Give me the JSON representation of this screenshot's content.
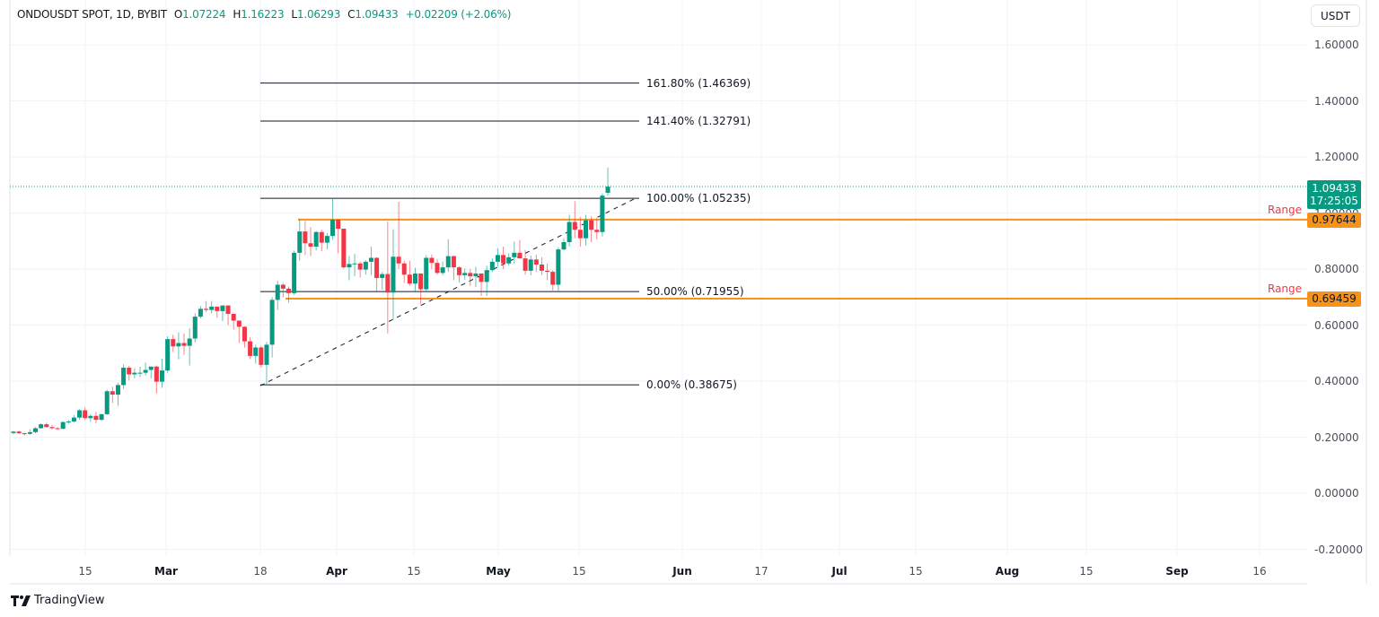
{
  "legend": {
    "symbol": "ONDOUSDT SPOT, 1D, BYBIT",
    "open_label": "O",
    "open": "1.07224",
    "high_label": "H",
    "high": "1.16223",
    "low_label": "L",
    "low": "1.06293",
    "close_label": "C",
    "close": "1.09433",
    "change": "+0.02209 (+2.06%)"
  },
  "currency_button": "USDT",
  "price_axis": {
    "ticks": [
      "1.60000",
      "1.40000",
      "1.20000",
      "1.00000",
      "0.80000",
      "0.60000",
      "0.40000",
      "0.20000",
      "0.00000",
      "-0.20000"
    ]
  },
  "time_axis": {
    "ticks": [
      {
        "label": "15",
        "month": false
      },
      {
        "label": "Mar",
        "month": true
      },
      {
        "label": "18",
        "month": false
      },
      {
        "label": "Apr",
        "month": true
      },
      {
        "label": "15",
        "month": false
      },
      {
        "label": "May",
        "month": true
      },
      {
        "label": "15",
        "month": false
      },
      {
        "label": "Jun",
        "month": true
      },
      {
        "label": "17",
        "month": false
      },
      {
        "label": "Jul",
        "month": true
      },
      {
        "label": "15",
        "month": false
      },
      {
        "label": "Aug",
        "month": true
      },
      {
        "label": "15",
        "month": false
      },
      {
        "label": "Sep",
        "month": true
      },
      {
        "label": "16",
        "month": false
      }
    ]
  },
  "last_price_tag": {
    "price": "1.09433",
    "countdown": "17:25:05"
  },
  "range_lines": [
    {
      "label": "Range",
      "price": "0.97644"
    },
    {
      "label": "Range",
      "price": "0.69459"
    }
  ],
  "fib_levels": [
    {
      "label": "161.80% (1.46369)"
    },
    {
      "label": "141.40% (1.32791)"
    },
    {
      "label": "100.00% (1.05235)"
    },
    {
      "label": "50.00% (0.71955)"
    },
    {
      "label": "0.00% (0.38675)"
    }
  ],
  "branding": {
    "logo_text": "TradingView"
  },
  "colors": {
    "up": "#089981",
    "down": "#f23645",
    "range": "#f7931a",
    "fib": "#131722",
    "last": "#089981"
  },
  "chart_data": {
    "type": "candlestick",
    "title": "ONDOUSDT SPOT, 1D, BYBIT",
    "xlabel": "",
    "ylabel": "USDT",
    "ylim": [
      -0.24,
      1.67
    ],
    "grid": true,
    "x_tick_labels": [
      "15",
      "Mar",
      "18",
      "Apr",
      "15",
      "May",
      "15",
      "Jun",
      "17",
      "Jul",
      "15",
      "Aug",
      "15",
      "Sep",
      "16"
    ],
    "y_tick_labels": [
      "1.60000",
      "1.40000",
      "1.20000",
      "1.00000",
      "0.80000",
      "0.60000",
      "0.40000",
      "0.20000",
      "0.00000",
      "-0.20000"
    ],
    "last": {
      "open": 1.07224,
      "high": 1.16223,
      "low": 1.06293,
      "close": 1.09433,
      "change": 0.02209,
      "change_pct": 2.06
    },
    "horizontal_lines": [
      {
        "name": "Range",
        "value": 0.97644,
        "color": "#f7931a"
      },
      {
        "name": "Range",
        "value": 0.69459,
        "color": "#f7931a"
      }
    ],
    "fibonacci": {
      "anchor_low": 0.38675,
      "anchor_high": 1.05235,
      "levels": [
        {
          "ratio": 0.0,
          "value": 0.38675
        },
        {
          "ratio": 0.5,
          "value": 0.71955
        },
        {
          "ratio": 1.0,
          "value": 1.05235
        },
        {
          "ratio": 1.414,
          "value": 1.32791
        },
        {
          "ratio": 1.618,
          "value": 1.46369
        }
      ]
    },
    "candles": [
      [
        0.215,
        0.222,
        0.21,
        0.22
      ],
      [
        0.22,
        0.224,
        0.212,
        0.214
      ],
      [
        0.214,
        0.216,
        0.206,
        0.212
      ],
      [
        0.212,
        0.228,
        0.208,
        0.218
      ],
      [
        0.218,
        0.236,
        0.214,
        0.232
      ],
      [
        0.232,
        0.25,
        0.23,
        0.246
      ],
      [
        0.246,
        0.252,
        0.234,
        0.236
      ],
      [
        0.236,
        0.244,
        0.228,
        0.232
      ],
      [
        0.232,
        0.236,
        0.226,
        0.23
      ],
      [
        0.23,
        0.256,
        0.228,
        0.254
      ],
      [
        0.254,
        0.262,
        0.248,
        0.256
      ],
      [
        0.256,
        0.278,
        0.252,
        0.27
      ],
      [
        0.27,
        0.3,
        0.262,
        0.296
      ],
      [
        0.296,
        0.306,
        0.262,
        0.268
      ],
      [
        0.268,
        0.282,
        0.254,
        0.276
      ],
      [
        0.276,
        0.29,
        0.25,
        0.262
      ],
      [
        0.262,
        0.284,
        0.258,
        0.282
      ],
      [
        0.282,
        0.37,
        0.28,
        0.364
      ],
      [
        0.364,
        0.38,
        0.322,
        0.352
      ],
      [
        0.352,
        0.394,
        0.312,
        0.386
      ],
      [
        0.386,
        0.46,
        0.372,
        0.448
      ],
      [
        0.448,
        0.454,
        0.402,
        0.424
      ],
      [
        0.424,
        0.446,
        0.41,
        0.43
      ],
      [
        0.43,
        0.452,
        0.414,
        0.43
      ],
      [
        0.43,
        0.466,
        0.42,
        0.44
      ],
      [
        0.44,
        0.45,
        0.41,
        0.452
      ],
      [
        0.452,
        0.456,
        0.356,
        0.398
      ],
      [
        0.398,
        0.48,
        0.376,
        0.438
      ],
      [
        0.438,
        0.56,
        0.43,
        0.55
      ],
      [
        0.55,
        0.566,
        0.504,
        0.524
      ],
      [
        0.524,
        0.574,
        0.478,
        0.536
      ],
      [
        0.536,
        0.57,
        0.494,
        0.526
      ],
      [
        0.526,
        0.588,
        0.456,
        0.552
      ],
      [
        0.552,
        0.642,
        0.538,
        0.63
      ],
      [
        0.63,
        0.668,
        0.624,
        0.658
      ],
      [
        0.658,
        0.686,
        0.646,
        0.654
      ],
      [
        0.654,
        0.686,
        0.642,
        0.666
      ],
      [
        0.666,
        0.666,
        0.626,
        0.65
      ],
      [
        0.65,
        0.668,
        0.614,
        0.67
      ],
      [
        0.67,
        0.66,
        0.6,
        0.64
      ],
      [
        0.64,
        0.632,
        0.584,
        0.616
      ],
      [
        0.616,
        0.614,
        0.536,
        0.594
      ],
      [
        0.594,
        0.596,
        0.52,
        0.542
      ],
      [
        0.542,
        0.556,
        0.478,
        0.49
      ],
      [
        0.49,
        0.53,
        0.462,
        0.52
      ],
      [
        0.52,
        0.526,
        0.448,
        0.458
      ],
      [
        0.458,
        0.54,
        0.386,
        0.53
      ],
      [
        0.53,
        0.7,
        0.484,
        0.69
      ],
      [
        0.69,
        0.758,
        0.654,
        0.744
      ],
      [
        0.744,
        0.75,
        0.7,
        0.73
      ],
      [
        0.73,
        0.738,
        0.68,
        0.714
      ],
      [
        0.714,
        0.866,
        0.708,
        0.858
      ],
      [
        0.858,
        0.98,
        0.83,
        0.934
      ],
      [
        0.934,
        0.972,
        0.85,
        0.892
      ],
      [
        0.892,
        0.95,
        0.846,
        0.88
      ],
      [
        0.88,
        0.936,
        0.866,
        0.932
      ],
      [
        0.932,
        0.94,
        0.864,
        0.894
      ],
      [
        0.894,
        0.928,
        0.87,
        0.918
      ],
      [
        0.918,
        1.05,
        0.904,
        0.976
      ],
      [
        0.976,
        0.978,
        0.856,
        0.944
      ],
      [
        0.944,
        0.944,
        0.802,
        0.806
      ],
      [
        0.806,
        0.846,
        0.76,
        0.818
      ],
      [
        0.818,
        0.854,
        0.774,
        0.82
      ],
      [
        0.82,
        0.826,
        0.77,
        0.798
      ],
      [
        0.798,
        0.832,
        0.78,
        0.826
      ],
      [
        0.826,
        0.88,
        0.778,
        0.84
      ],
      [
        0.84,
        0.842,
        0.72,
        0.768
      ],
      [
        0.768,
        0.79,
        0.726,
        0.782
      ],
      [
        0.782,
        0.97,
        0.57,
        0.716
      ],
      [
        0.716,
        0.942,
        0.62,
        0.844
      ],
      [
        0.844,
        1.04,
        0.8,
        0.82
      ],
      [
        0.82,
        0.83,
        0.75,
        0.78
      ],
      [
        0.78,
        0.83,
        0.74,
        0.748
      ],
      [
        0.748,
        0.804,
        0.718,
        0.784
      ],
      [
        0.784,
        0.772,
        0.674,
        0.728
      ],
      [
        0.728,
        0.85,
        0.718,
        0.84
      ],
      [
        0.84,
        0.852,
        0.8,
        0.822
      ],
      [
        0.822,
        0.836,
        0.78,
        0.786
      ],
      [
        0.786,
        0.826,
        0.778,
        0.806
      ],
      [
        0.806,
        0.906,
        0.79,
        0.846
      ],
      [
        0.846,
        0.848,
        0.76,
        0.806
      ],
      [
        0.806,
        0.81,
        0.752,
        0.778
      ],
      [
        0.778,
        0.802,
        0.762,
        0.786
      ],
      [
        0.786,
        0.8,
        0.74,
        0.774
      ],
      [
        0.774,
        0.808,
        0.736,
        0.784
      ],
      [
        0.784,
        0.78,
        0.704,
        0.754
      ],
      [
        0.754,
        0.812,
        0.704,
        0.796
      ],
      [
        0.796,
        0.838,
        0.79,
        0.826
      ],
      [
        0.826,
        0.874,
        0.81,
        0.85
      ],
      [
        0.85,
        0.88,
        0.8,
        0.82
      ],
      [
        0.82,
        0.856,
        0.812,
        0.842
      ],
      [
        0.842,
        0.898,
        0.818,
        0.858
      ],
      [
        0.858,
        0.904,
        0.842,
        0.838
      ],
      [
        0.838,
        0.868,
        0.78,
        0.794
      ],
      [
        0.794,
        0.848,
        0.778,
        0.834
      ],
      [
        0.834,
        0.852,
        0.79,
        0.816
      ],
      [
        0.816,
        0.842,
        0.778,
        0.794
      ],
      [
        0.794,
        0.82,
        0.76,
        0.79
      ],
      [
        0.79,
        0.796,
        0.724,
        0.744
      ],
      [
        0.744,
        0.878,
        0.722,
        0.87
      ],
      [
        0.87,
        0.91,
        0.866,
        0.896
      ],
      [
        0.896,
        0.994,
        0.88,
        0.968
      ],
      [
        0.968,
        1.042,
        0.91,
        0.94
      ],
      [
        0.94,
        0.986,
        0.88,
        0.91
      ],
      [
        0.91,
        0.994,
        0.884,
        0.974
      ],
      [
        0.974,
        0.988,
        0.896,
        0.94
      ],
      [
        0.94,
        0.982,
        0.906,
        0.932
      ],
      [
        0.932,
        1.07,
        0.916,
        1.062
      ],
      [
        1.072,
        1.162,
        1.062,
        1.094
      ]
    ]
  }
}
